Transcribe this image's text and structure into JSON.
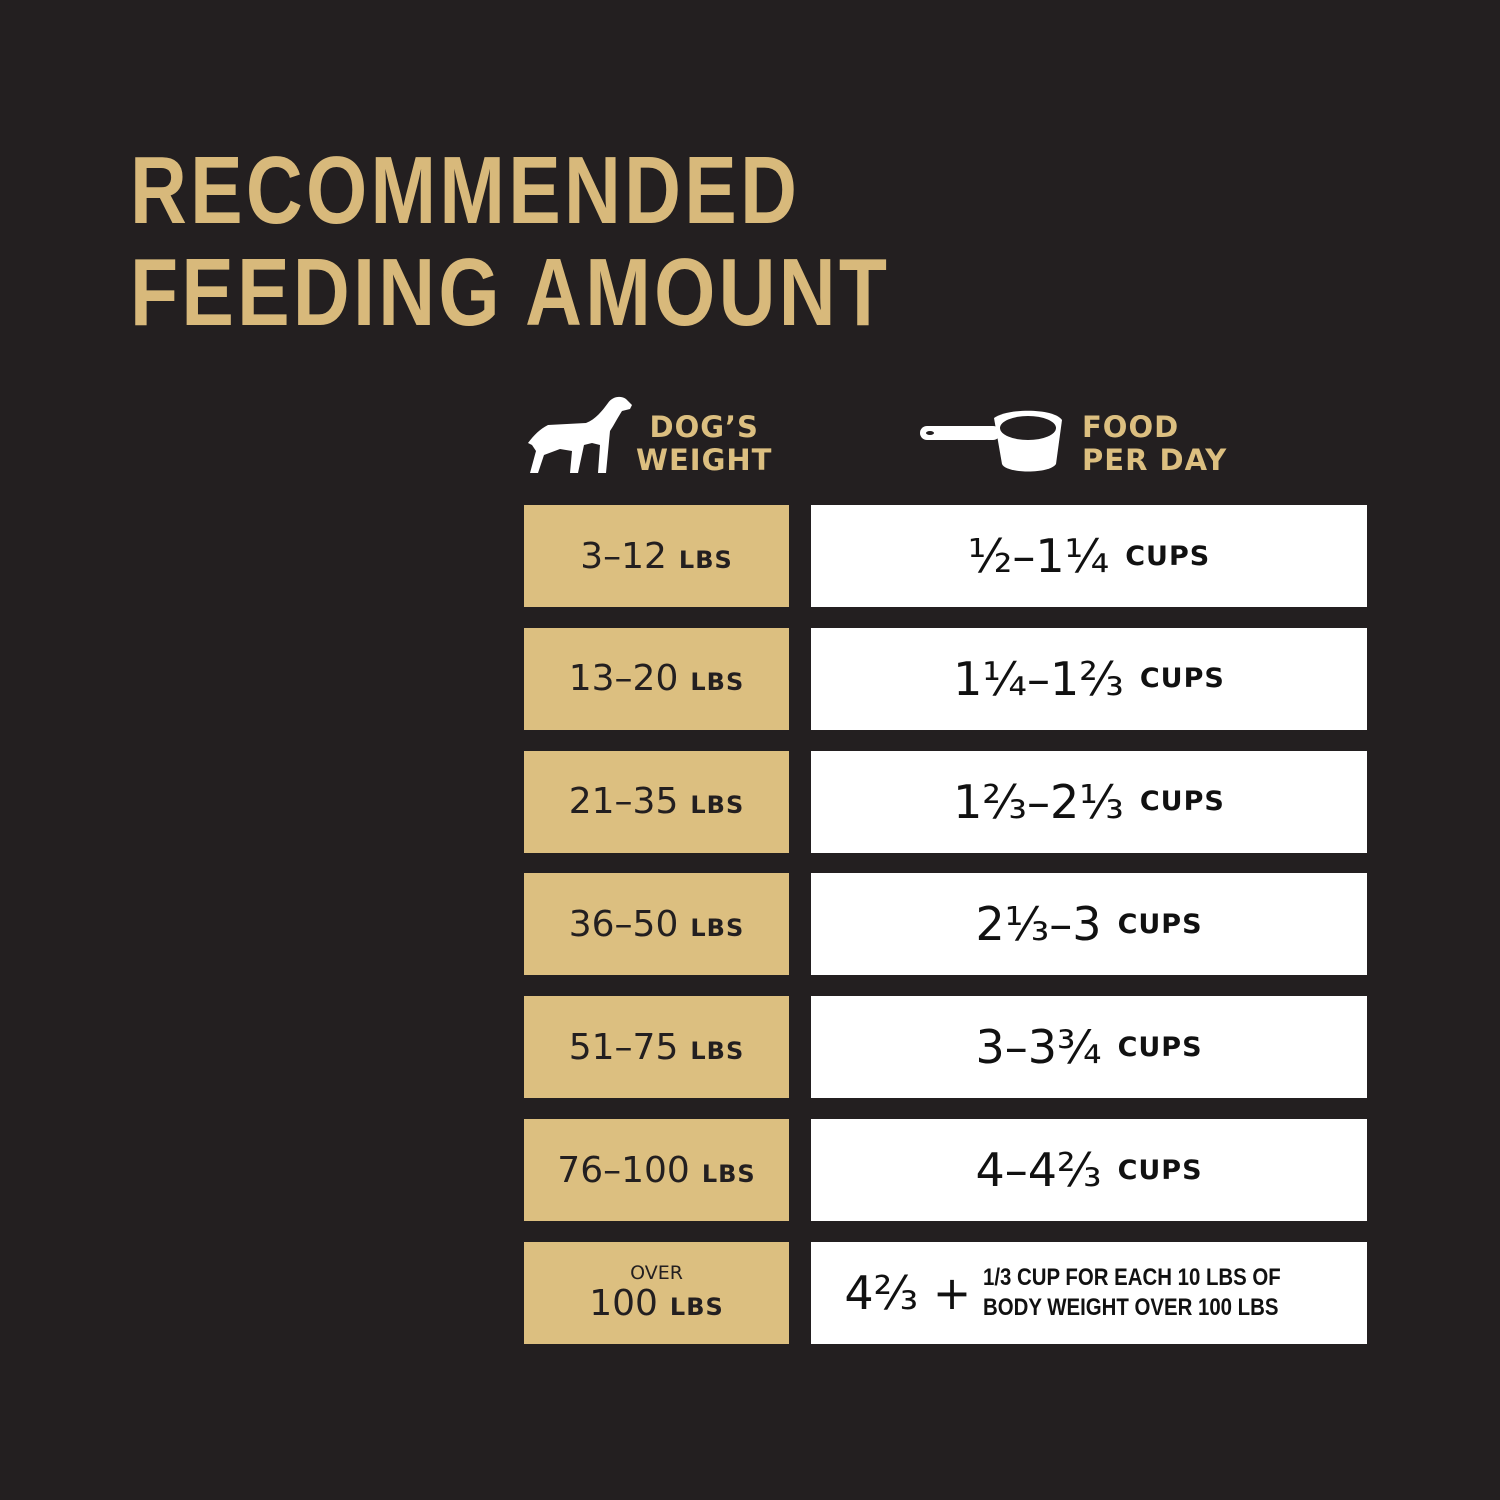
{
  "title": {
    "line1": "RECOMMENDED",
    "line2": "FEEDING AMOUNT"
  },
  "colors": {
    "background": "#231f20",
    "gold": "#dcbf80",
    "white": "#ffffff"
  },
  "headers": {
    "weight": {
      "icon": "dog-icon",
      "line1": "DOG’S",
      "line2": "WEIGHT"
    },
    "food": {
      "icon": "measuring-cup-icon",
      "line1": "FOOD",
      "line2": "PER DAY"
    }
  },
  "rows": [
    {
      "weight": "3–12",
      "weight_unit": "LBS",
      "food": "½–1¼",
      "food_unit": "CUPS"
    },
    {
      "weight": "13–20",
      "weight_unit": "LBS",
      "food": "1¼–1⅔",
      "food_unit": "CUPS"
    },
    {
      "weight": "21–35",
      "weight_unit": "LBS",
      "food": "1⅔–2⅓",
      "food_unit": "CUPS"
    },
    {
      "weight": "36–50",
      "weight_unit": "LBS",
      "food": "2⅓–3",
      "food_unit": "CUPS"
    },
    {
      "weight": "51–75",
      "weight_unit": "LBS",
      "food": "3–3¾",
      "food_unit": "CUPS"
    },
    {
      "weight": "76–100",
      "weight_unit": "LBS",
      "food": "4–4⅔",
      "food_unit": "CUPS"
    }
  ],
  "last_row": {
    "prefix": "OVER",
    "weight": "100",
    "weight_unit": "LBS",
    "food": "4⅔ +",
    "note_line1": "1/3 CUP FOR EACH 10 LBS OF",
    "note_line2": "BODY WEIGHT OVER 100 LBS"
  }
}
